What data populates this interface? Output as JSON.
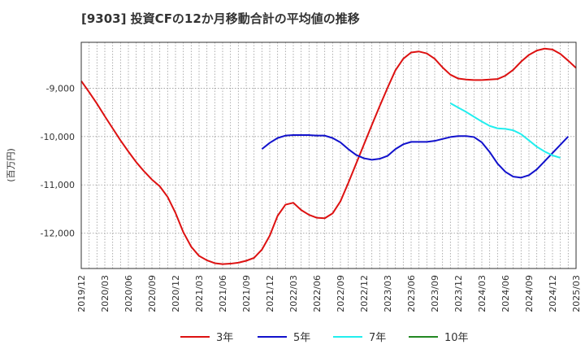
{
  "chart_data": {
    "type": "line",
    "title": "[9303]  投資CFの12か月移動合計の平均値の推移",
    "ylabel": "(百万円)",
    "xlabel": "",
    "x_tick_labels": [
      "2019/12",
      "2020/03",
      "2020/06",
      "2020/09",
      "2020/12",
      "2021/03",
      "2021/06",
      "2021/09",
      "2021/12",
      "2022/03",
      "2022/06",
      "2022/09",
      "2022/12",
      "2023/03",
      "2023/06",
      "2023/09",
      "2023/12",
      "2024/03",
      "2024/06",
      "2024/09",
      "2024/12",
      "2025/03"
    ],
    "y_ticks": [
      -9000,
      -10000,
      -11000,
      -12000
    ],
    "y_tick_labels": [
      "-9,000",
      "-10,000",
      "-11,000",
      "-12,000"
    ],
    "ylim": [
      -12730,
      -8050
    ],
    "x_start": "2019-12",
    "x_end": "2025-03",
    "grid": true,
    "legend_position": "bottom",
    "series": [
      {
        "name": "3年",
        "color": "#dd1111",
        "start": "2019-12",
        "values": [
          -8850,
          -9080,
          -9320,
          -9580,
          -9830,
          -10080,
          -10310,
          -10530,
          -10720,
          -10890,
          -11030,
          -11250,
          -11580,
          -11980,
          -12280,
          -12470,
          -12560,
          -12620,
          -12640,
          -12630,
          -12610,
          -12570,
          -12510,
          -12340,
          -12050,
          -11640,
          -11410,
          -11370,
          -11520,
          -11620,
          -11680,
          -11690,
          -11590,
          -11340,
          -10960,
          -10560,
          -10160,
          -9760,
          -9370,
          -8990,
          -8630,
          -8390,
          -8260,
          -8240,
          -8280,
          -8390,
          -8570,
          -8720,
          -8800,
          -8820,
          -8830,
          -8830,
          -8820,
          -8810,
          -8740,
          -8620,
          -8450,
          -8310,
          -8220,
          -8180,
          -8200,
          -8290,
          -8430,
          -8580
        ]
      },
      {
        "name": "5年",
        "color": "#1111cc",
        "start": "2021-11",
        "values": [
          -10260,
          -10130,
          -10030,
          -9980,
          -9970,
          -9970,
          -9970,
          -9980,
          -9980,
          -10030,
          -10120,
          -10260,
          -10380,
          -10450,
          -10480,
          -10460,
          -10400,
          -10260,
          -10160,
          -10110,
          -10110,
          -10110,
          -10090,
          -10050,
          -10010,
          -9990,
          -9990,
          -10010,
          -10120,
          -10320,
          -10560,
          -10730,
          -10830,
          -10850,
          -10800,
          -10680,
          -10510,
          -10340,
          -10170,
          -10000
        ]
      },
      {
        "name": "7年",
        "color": "#22eeee",
        "start": "2023-11",
        "values": [
          -9310,
          -9400,
          -9490,
          -9590,
          -9690,
          -9780,
          -9830,
          -9840,
          -9870,
          -9950,
          -10080,
          -10210,
          -10310,
          -10390,
          -10440
        ]
      },
      {
        "name": "10年",
        "color": "#228822",
        "start": "",
        "values": []
      }
    ]
  }
}
